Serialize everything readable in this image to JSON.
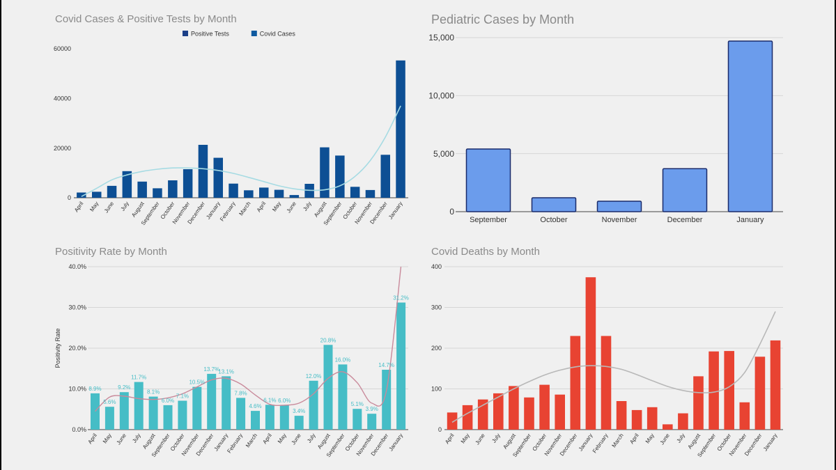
{
  "chart_data": [
    {
      "type": "bar",
      "title": "Covid Cases & Positive Tests by Month",
      "legend": [
        "Positive Tests",
        "Covid Cases"
      ],
      "legend_placement": "top-center",
      "colors": {
        "bar": "#0d4f94",
        "trend": "#a6dbe3",
        "legend_dark": "#1b3f87",
        "legend_light": "#0f5aa0"
      },
      "categories": [
        "April",
        "May",
        "June",
        "July",
        "August",
        "September",
        "October",
        "November",
        "December",
        "January",
        "February",
        "March",
        "April",
        "May",
        "June",
        "July",
        "August",
        "September",
        "October",
        "November",
        "December",
        "January"
      ],
      "values": [
        2100,
        2400,
        4800,
        10700,
        6500,
        3800,
        7000,
        11500,
        21300,
        16100,
        5700,
        3000,
        4100,
        3200,
        1100,
        5600,
        20300,
        17000,
        4400,
        3100,
        17300,
        55300
      ],
      "trend": [
        500,
        3800,
        7200,
        9200,
        10600,
        11500,
        12000,
        12000,
        11700,
        11000,
        9800,
        8200,
        6500,
        4800,
        3600,
        3000,
        3200,
        4800,
        8600,
        15000,
        24500,
        37000
      ],
      "ylim": [
        0,
        60000
      ],
      "yticks": [
        "0",
        "20000",
        "40000",
        "60000"
      ],
      "ytick_values": [
        0,
        20000,
        40000,
        60000
      ]
    },
    {
      "type": "bar",
      "title": "Pediatric Cases by Month",
      "colors": {
        "bar": "#6b9cec",
        "stroke": "#1a2b6b"
      },
      "categories": [
        "September",
        "October",
        "November",
        "December",
        "January"
      ],
      "values": [
        5400,
        1200,
        900,
        3700,
        14700
      ],
      "ylim": [
        0,
        15000
      ],
      "yticks": [
        "0",
        "5,000",
        "10,000",
        "15,000"
      ],
      "ytick_values": [
        0,
        5000,
        10000,
        15000
      ]
    },
    {
      "type": "bar",
      "title": "Positivity Rate by Month",
      "ylabel": "Positivity Rate",
      "colors": {
        "bar": "#46bdc6",
        "label": "#46bdc6",
        "trend": "#c98a9b"
      },
      "categories": [
        "April",
        "May",
        "June",
        "July",
        "August",
        "September",
        "October",
        "November",
        "December",
        "January",
        "February",
        "March",
        "April",
        "May",
        "June",
        "July",
        "August",
        "September",
        "October",
        "November",
        "December",
        "January"
      ],
      "values": [
        8.9,
        5.6,
        9.2,
        11.7,
        8.1,
        6.0,
        7.1,
        10.5,
        13.7,
        13.1,
        7.8,
        4.6,
        6.1,
        6.0,
        3.4,
        12.0,
        20.8,
        16.0,
        5.1,
        3.9,
        14.7,
        31.2
      ],
      "labels": [
        "8.9%",
        "5.6%",
        "9.2%",
        "11.7%",
        "8.1%",
        "6.0%",
        "7.1%",
        "10.5%",
        "13.7%",
        "13.1%",
        "7.8%",
        "4.6%",
        "6.1%",
        "6.0%",
        "3.4%",
        "12.0%",
        "20.8%",
        "16.0%",
        "5.1%",
        "3.9%",
        "14.7%",
        "31.2%"
      ],
      "trend": [
        4.5,
        8.0,
        8.2,
        7.6,
        7.4,
        7.8,
        8.8,
        10.5,
        12.2,
        12.6,
        11.2,
        8.5,
        6.2,
        6.0,
        6.5,
        8.8,
        12.6,
        14.2,
        11.5,
        6.5,
        9.5,
        40.0
      ],
      "ylim": [
        0,
        40
      ],
      "yticks": [
        "0.0%",
        "10.0%",
        "20.0%",
        "30.0%",
        "40.0%"
      ],
      "ytick_values": [
        0,
        10,
        20,
        30,
        40
      ]
    },
    {
      "type": "bar",
      "title": "Covid Deaths by Month",
      "colors": {
        "bar": "#e84332",
        "trend": "#b8b8b8"
      },
      "categories": [
        "April",
        "May",
        "June",
        "July",
        "August",
        "September",
        "October",
        "November",
        "December",
        "January",
        "February",
        "March",
        "April",
        "May",
        "June",
        "July",
        "August",
        "September",
        "October",
        "November",
        "December",
        "January"
      ],
      "values": [
        42,
        60,
        74,
        89,
        107,
        79,
        110,
        86,
        230,
        374,
        230,
        70,
        48,
        55,
        13,
        40,
        131,
        192,
        193,
        67,
        179,
        219
      ],
      "trend": [
        18,
        40,
        60,
        80,
        100,
        118,
        134,
        146,
        154,
        157,
        155,
        148,
        135,
        120,
        106,
        96,
        91,
        92,
        105,
        140,
        210,
        290
      ],
      "ylim": [
        0,
        400
      ],
      "yticks": [
        "0",
        "100",
        "200",
        "300",
        "400"
      ],
      "ytick_values": [
        0,
        100,
        200,
        300,
        400
      ]
    }
  ]
}
